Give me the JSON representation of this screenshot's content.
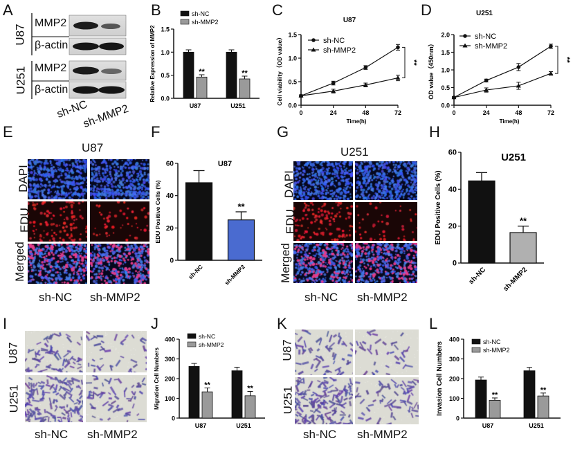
{
  "panels": {
    "A": {
      "letter": "A",
      "rows": [
        "MMP2",
        "β-actin",
        "MMP2",
        "β-actin"
      ],
      "cell_lines": [
        "U87",
        "U251"
      ],
      "conditions": [
        "sh-NC",
        "sh-MMP2"
      ]
    },
    "B": {
      "letter": "B"
    },
    "C": {
      "letter": "C"
    },
    "D": {
      "letter": "D"
    },
    "E": {
      "letter": "E",
      "title": "U87",
      "rows": [
        "DAPI",
        "EDU",
        "Merged"
      ],
      "conditions": [
        "sh-NC",
        "sh-MMP2"
      ]
    },
    "F": {
      "letter": "F"
    },
    "G": {
      "letter": "G",
      "title": "U251",
      "rows": [
        "DAPI",
        "EDU",
        "Merged"
      ],
      "conditions": [
        "sh-NC",
        "sh-MMP2"
      ]
    },
    "H": {
      "letter": "H"
    },
    "I": {
      "letter": "I",
      "rows": [
        "U87",
        "U251"
      ],
      "conditions": [
        "sh-NC",
        "sh-MMP2"
      ]
    },
    "J": {
      "letter": "J"
    },
    "K": {
      "letter": "K",
      "rows": [
        "U87",
        "U251"
      ],
      "conditions": [
        "sh-NC",
        "sh-MMP2"
      ]
    },
    "L": {
      "letter": "L"
    }
  },
  "chart_data": [
    {
      "id": "B",
      "type": "bar",
      "title": "",
      "ylabel": "Relative Expression of MMP2",
      "xlabel": "",
      "categories": [
        "U87",
        "U251"
      ],
      "ylim": [
        0,
        1.5
      ],
      "yticks": [
        0.0,
        0.5,
        1.0,
        1.5
      ],
      "series": [
        {
          "name": "sh-NC",
          "values": [
            1.0,
            1.0
          ],
          "errors": [
            0.05,
            0.05
          ]
        },
        {
          "name": "sh-MMP2",
          "values": [
            0.46,
            0.42
          ],
          "errors": [
            0.05,
            0.06
          ]
        }
      ],
      "annotations": [
        "**",
        "**"
      ],
      "legend": "top-right",
      "colors": {
        "sh-NC": "#111111",
        "sh-MMP2": "#9a9a9a"
      }
    },
    {
      "id": "C",
      "type": "line",
      "title": "U87",
      "ylabel": "Cell viability（OD value）",
      "xlabel": "Time(h)",
      "x": [
        0,
        24,
        48,
        72
      ],
      "xlim": [
        0,
        72
      ],
      "ylim": [
        0.0,
        1.5
      ],
      "yticks": [
        0.0,
        0.5,
        1.0,
        1.5
      ],
      "series": [
        {
          "name": "sh-NC",
          "values": [
            0.2,
            0.47,
            0.8,
            1.23
          ],
          "errors": [
            0.02,
            0.04,
            0.04,
            0.06
          ],
          "marker": "circle"
        },
        {
          "name": "sh-MMP2",
          "values": [
            0.2,
            0.3,
            0.43,
            0.58
          ],
          "errors": [
            0.02,
            0.04,
            0.04,
            0.06
          ],
          "marker": "triangle"
        }
      ],
      "annotations": [
        "**"
      ],
      "legend": "top-left"
    },
    {
      "id": "D",
      "type": "line",
      "title": "U251",
      "ylabel": "OD value（450nm）",
      "xlabel": "Time(h)",
      "x": [
        0,
        24,
        48,
        72
      ],
      "xlim": [
        0,
        72
      ],
      "ylim": [
        0.0,
        2.0
      ],
      "yticks": [
        0.0,
        0.5,
        1.0,
        1.5,
        2.0
      ],
      "series": [
        {
          "name": "sh-NC",
          "values": [
            0.22,
            0.7,
            1.08,
            1.67
          ],
          "errors": [
            0.02,
            0.04,
            0.1,
            0.06
          ],
          "marker": "circle"
        },
        {
          "name": "sh-MMP2",
          "values": [
            0.22,
            0.43,
            0.55,
            0.9
          ],
          "errors": [
            0.02,
            0.06,
            0.1,
            0.05
          ],
          "marker": "triangle"
        }
      ],
      "annotations": [
        "**"
      ],
      "legend": "top-left"
    },
    {
      "id": "F",
      "type": "bar",
      "title": "U87",
      "ylabel": "EDU Positive Cells (%)",
      "xlabel": "",
      "categories": [
        "sh-NC",
        "sh-MMP2"
      ],
      "ylim": [
        0,
        60
      ],
      "yticks": [
        0,
        20,
        40,
        60
      ],
      "values": [
        48,
        25
      ],
      "errors": [
        7.5,
        5
      ],
      "colors": [
        "#111111",
        "#4a6bd0"
      ],
      "annotations": [
        "",
        "**"
      ]
    },
    {
      "id": "H",
      "type": "bar",
      "title": "U251",
      "ylabel": "EDU Positive Cells (%)",
      "xlabel": "",
      "categories": [
        "sh-NC",
        "sh-MMP2"
      ],
      "ylim": [
        0,
        60
      ],
      "yticks": [
        0,
        20,
        40,
        60
      ],
      "values": [
        44.5,
        16.5
      ],
      "errors": [
        4.5,
        3.5
      ],
      "colors": [
        "#111111",
        "#b0b0b0"
      ],
      "annotations": [
        "",
        "**"
      ]
    },
    {
      "id": "J",
      "type": "bar",
      "title": "",
      "ylabel": "Migration Cell Numbers",
      "xlabel": "",
      "categories": [
        "U87",
        "U251"
      ],
      "ylim": [
        0,
        400
      ],
      "yticks": [
        0,
        100,
        200,
        300,
        400
      ],
      "series": [
        {
          "name": "sh-NC",
          "values": [
            262,
            240
          ],
          "errors": [
            15,
            18
          ]
        },
        {
          "name": "sh-MMP2",
          "values": [
            133,
            113
          ],
          "errors": [
            20,
            22
          ]
        }
      ],
      "annotations": [
        "**",
        "**"
      ],
      "legend": "top-right",
      "colors": {
        "sh-NC": "#111111",
        "sh-MMP2": "#9a9a9a"
      }
    },
    {
      "id": "L",
      "type": "bar",
      "title": "",
      "ylabel": "Invasion Cell Numbers",
      "xlabel": "",
      "categories": [
        "U87",
        "U251"
      ],
      "ylim": [
        0,
        400
      ],
      "yticks": [
        0,
        100,
        200,
        300,
        400
      ],
      "series": [
        {
          "name": "sh-NC",
          "values": [
            193,
            240
          ],
          "errors": [
            15,
            17
          ]
        },
        {
          "name": "sh-MMP2",
          "values": [
            90,
            112
          ],
          "errors": [
            12,
            15
          ]
        }
      ],
      "annotations": [
        "**",
        "**"
      ],
      "legend": "top-right",
      "colors": {
        "sh-NC": "#111111",
        "sh-MMP2": "#9a9a9a"
      }
    }
  ]
}
